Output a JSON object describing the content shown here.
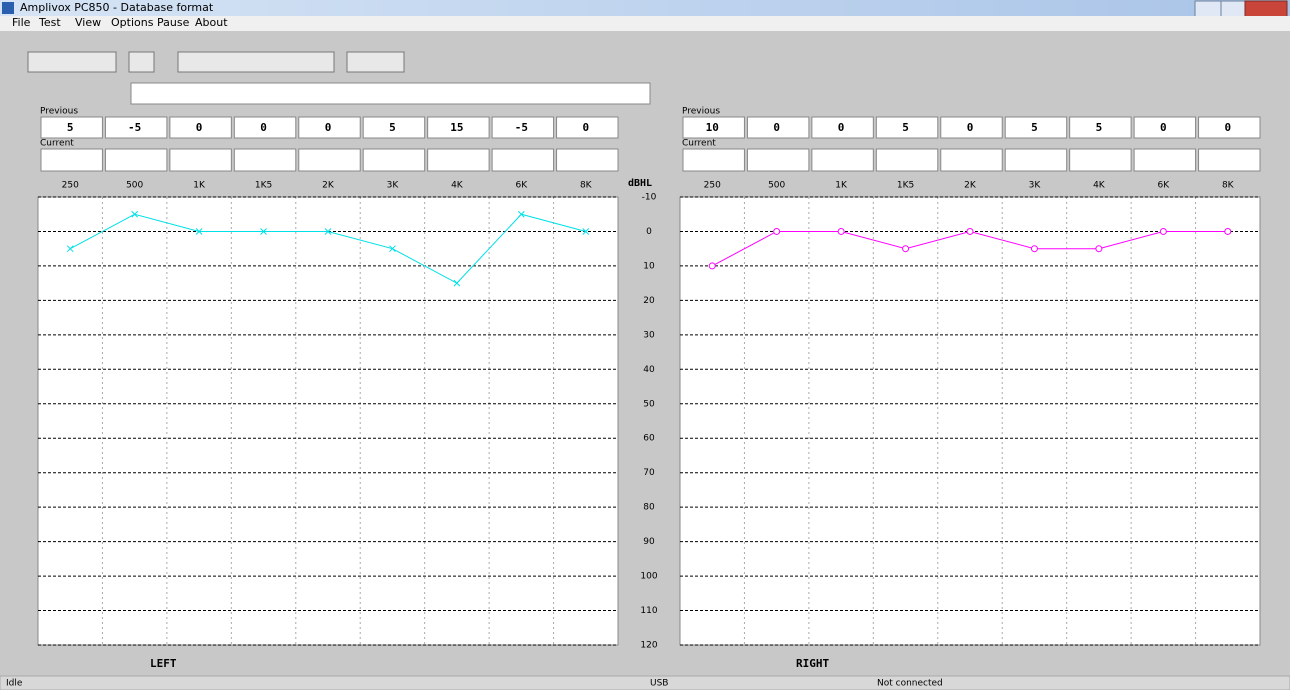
{
  "window": {
    "title": "Amplivox PC850 - Database format"
  },
  "menu": [
    "File",
    "Test",
    "View",
    "Options",
    "Pause",
    "About"
  ],
  "panels": [
    {
      "previous_label": "Previous",
      "current_label": "Current"
    },
    {
      "previous_label": "Previous",
      "current_label": "Current"
    }
  ],
  "status": [
    "Idle",
    "USB",
    "Not connected"
  ],
  "chart_data": [
    {
      "type": "line",
      "title": "LEFT",
      "y_label": "dBHL",
      "categories": [
        "250",
        "500",
        "1K",
        "1K5",
        "2K",
        "3K",
        "4K",
        "6K",
        "8K"
      ],
      "values": [
        5,
        -5,
        0,
        0,
        0,
        5,
        15,
        -5,
        0
      ],
      "color": "#00e0e8",
      "marker": "x",
      "ylim": [
        -10,
        120
      ],
      "yticks": [
        -10,
        0,
        10,
        20,
        30,
        40,
        50,
        60,
        70,
        80,
        90,
        100,
        110,
        120
      ],
      "y_inverted": true,
      "grid": true
    },
    {
      "type": "line",
      "title": "RIGHT",
      "categories": [
        "250",
        "500",
        "1K",
        "1K5",
        "2K",
        "3K",
        "4K",
        "6K",
        "8K"
      ],
      "values": [
        10,
        0,
        0,
        5,
        0,
        5,
        5,
        0,
        0
      ],
      "color": "#ff00ff",
      "marker": "o",
      "ylim": [
        -10,
        120
      ],
      "yticks": [
        -10,
        0,
        10,
        20,
        30,
        40,
        50,
        60,
        70,
        80,
        90,
        100,
        110,
        120
      ],
      "y_inverted": true,
      "grid": true
    }
  ]
}
